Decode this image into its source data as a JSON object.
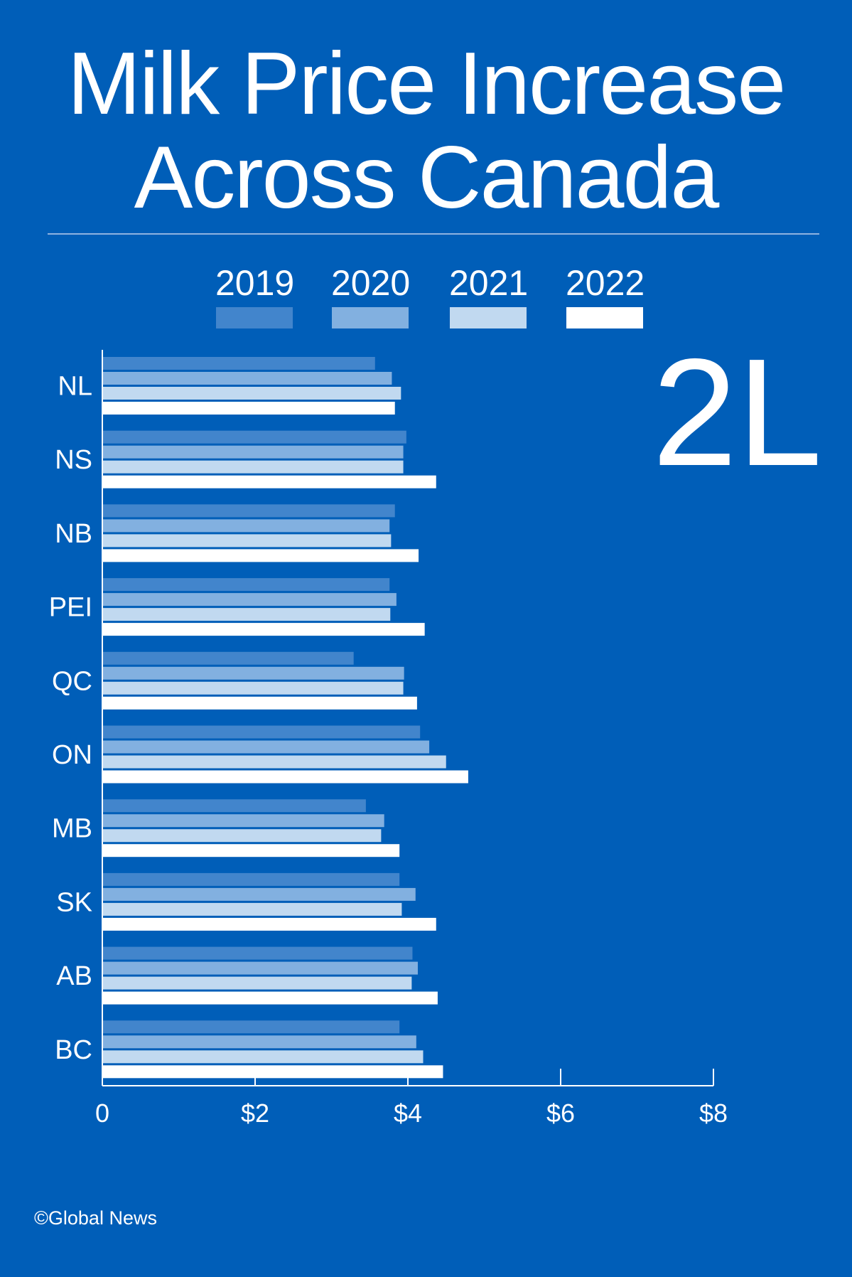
{
  "header": {
    "title_line1": "Milk Price Increase",
    "title_line2": "Across Canada",
    "unit": "2L"
  },
  "footer": {
    "source": "©Global News"
  },
  "colors": {
    "background": "#005eb8",
    "series": [
      "#4285cc",
      "#82b0e0",
      "#c1d9f0",
      "#ffffff"
    ]
  },
  "chart_data": {
    "type": "bar",
    "orientation": "horizontal",
    "title": "Milk Price Increase Across Canada",
    "categories": [
      "NL",
      "NS",
      "NB",
      "PEI",
      "QC",
      "ON",
      "MB",
      "SK",
      "AB",
      "BC"
    ],
    "series": [
      {
        "name": "2019",
        "values": [
          3.57,
          3.98,
          3.83,
          3.76,
          3.29,
          4.16,
          3.45,
          3.89,
          4.06,
          3.89
        ]
      },
      {
        "name": "2020",
        "values": [
          3.79,
          3.94,
          3.76,
          3.85,
          3.95,
          4.28,
          3.69,
          4.1,
          4.13,
          4.11
        ]
      },
      {
        "name": "2021",
        "values": [
          3.91,
          3.94,
          3.78,
          3.77,
          3.94,
          4.5,
          3.65,
          3.92,
          4.05,
          4.2
        ]
      },
      {
        "name": "2022",
        "values": [
          3.83,
          4.37,
          4.14,
          4.22,
          4.12,
          4.79,
          3.89,
          4.37,
          4.39,
          4.46
        ]
      }
    ],
    "xlim": [
      0,
      8
    ],
    "x_ticks": [
      0,
      2,
      4,
      6,
      8
    ],
    "x_tick_labels": [
      "0",
      "$2",
      "$4",
      "$6",
      "$8"
    ],
    "legend_position": "top",
    "grid": false
  }
}
